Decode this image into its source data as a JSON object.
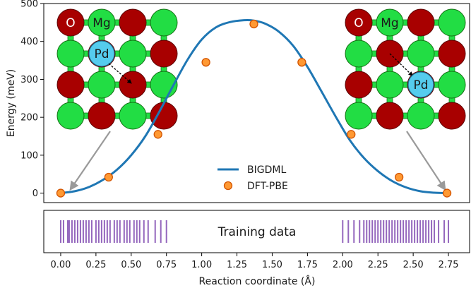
{
  "chart_data": {
    "type": "line",
    "xlabel": "Reaction coordinate (Å)",
    "ylabel": "Energy (meV)",
    "xlim": [
      -0.12,
      2.9
    ],
    "ylim": [
      -25,
      500
    ],
    "xticks": [
      0.0,
      0.25,
      0.5,
      0.75,
      1.0,
      1.25,
      1.5,
      1.75,
      2.0,
      2.25,
      2.5,
      2.75
    ],
    "xtick_labels": [
      "0.00",
      "0.25",
      "0.50",
      "0.75",
      "1.00",
      "1.25",
      "1.50",
      "1.75",
      "2.00",
      "2.25",
      "2.50",
      "2.75"
    ],
    "yticks": [
      0,
      100,
      200,
      300,
      400,
      500
    ],
    "ytick_labels": [
      "0",
      "100",
      "200",
      "300",
      "400",
      "500"
    ],
    "legend_position": "lower-center",
    "series": [
      {
        "name": "BIGDML",
        "style": "line",
        "color": "#1f77b4",
        "x": [
          0.0,
          0.1,
          0.2,
          0.3,
          0.4,
          0.5,
          0.6,
          0.7,
          0.8,
          0.9,
          1.0,
          1.1,
          1.2,
          1.3,
          1.37,
          1.45,
          1.55,
          1.65,
          1.75,
          1.85,
          1.95,
          2.05,
          2.15,
          2.25,
          2.35,
          2.45,
          2.55,
          2.65,
          2.74
        ],
        "y": [
          0,
          5,
          16,
          35,
          62,
          100,
          150,
          215,
          285,
          352,
          405,
          437,
          451,
          456,
          455,
          447,
          425,
          388,
          333,
          268,
          202,
          140,
          93,
          58,
          32,
          15,
          5,
          1,
          0
        ]
      },
      {
        "name": "DFT-PBE",
        "style": "scatter",
        "color": "#ff7f0e",
        "edge_color": "#d35400",
        "x": [
          0.0,
          0.34,
          0.69,
          1.03,
          1.37,
          1.71,
          2.06,
          2.4,
          2.74
        ],
        "y": [
          0,
          42,
          155,
          345,
          446,
          345,
          155,
          42,
          0
        ]
      }
    ],
    "insets": [
      {
        "labels": [
          "O",
          "Mg",
          "Pd"
        ]
      },
      {
        "labels": [
          "O",
          "Mg",
          "Pd"
        ]
      }
    ],
    "training_data": {
      "label": "Training data",
      "color": "#9467bd",
      "positions": [
        0.0,
        0.02,
        0.05,
        0.06,
        0.08,
        0.1,
        0.12,
        0.14,
        0.16,
        0.18,
        0.2,
        0.22,
        0.25,
        0.27,
        0.29,
        0.31,
        0.33,
        0.35,
        0.38,
        0.4,
        0.42,
        0.45,
        0.47,
        0.49,
        0.52,
        0.54,
        0.56,
        0.59,
        0.62,
        0.67,
        0.71,
        0.75,
        2.0,
        2.04,
        2.08,
        2.12,
        2.15,
        2.17,
        2.19,
        2.21,
        2.23,
        2.25,
        2.27,
        2.29,
        2.31,
        2.33,
        2.35,
        2.37,
        2.39,
        2.41,
        2.43,
        2.45,
        2.47,
        2.49,
        2.51,
        2.53,
        2.55,
        2.57,
        2.59,
        2.61,
        2.63,
        2.65,
        2.68,
        2.72,
        2.75
      ]
    }
  }
}
